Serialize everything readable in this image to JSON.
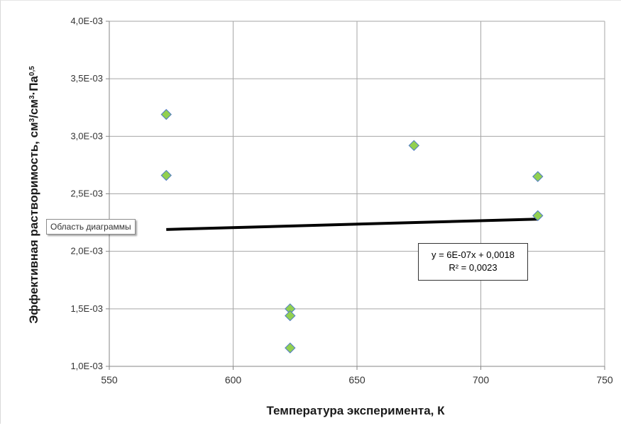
{
  "chart_data": {
    "type": "scatter",
    "xlabel": "Температура эксперимента, К",
    "ylabel_parts": {
      "main": "Эффективная растворимость, см",
      "sup1": "3",
      "mid": "/см",
      "sup2": "3",
      "dot": "·Па",
      "sup3": "0,5"
    },
    "xlim": [
      550,
      750
    ],
    "ylim": [
      0.001,
      0.004
    ],
    "x_ticks": [
      {
        "value": 550,
        "label": "550"
      },
      {
        "value": 600,
        "label": "600"
      },
      {
        "value": 650,
        "label": "650"
      },
      {
        "value": 700,
        "label": "700"
      },
      {
        "value": 750,
        "label": "750"
      }
    ],
    "y_ticks": [
      {
        "value": 0.001,
        "label": "1,0E-03"
      },
      {
        "value": 0.0015,
        "label": "1,5E-03"
      },
      {
        "value": 0.002,
        "label": "2,0E-03"
      },
      {
        "value": 0.0025,
        "label": "2,5E-03"
      },
      {
        "value": 0.003,
        "label": "3,0E-03"
      },
      {
        "value": 0.0035,
        "label": "3,5E-03"
      },
      {
        "value": 0.004,
        "label": "4,0E-03"
      }
    ],
    "grid": true,
    "series": [
      {
        "marker": "diamond",
        "color": "#92d050",
        "edge_color": "#4e7ac7",
        "points": [
          {
            "x": 573,
            "y": 0.00319
          },
          {
            "x": 573,
            "y": 0.00266
          },
          {
            "x": 623,
            "y": 0.0015
          },
          {
            "x": 623,
            "y": 0.00144
          },
          {
            "x": 623,
            "y": 0.00116
          },
          {
            "x": 673,
            "y": 0.00292
          },
          {
            "x": 723,
            "y": 0.00265
          },
          {
            "x": 723,
            "y": 0.00231
          }
        ]
      }
    ],
    "trendline": {
      "type": "linear",
      "color": "#000000",
      "x_range": [
        573,
        723
      ],
      "y_start": 0.00219,
      "y_end": 0.00228,
      "equation": "y = 6E-07x + 0,0018",
      "r_squared": "R² = 0,0023"
    },
    "tooltip": "Область диаграммы"
  }
}
